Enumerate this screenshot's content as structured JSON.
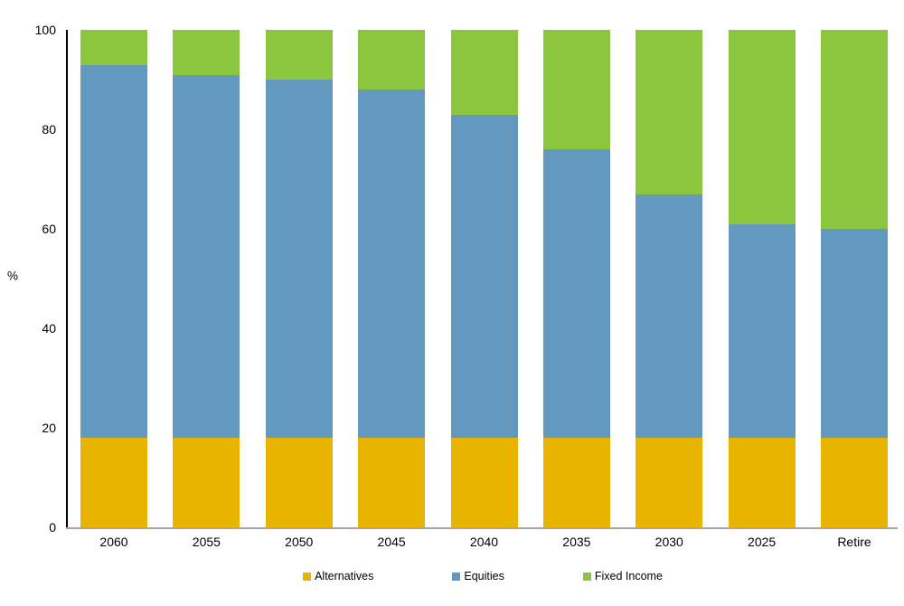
{
  "chart_data": {
    "type": "bar",
    "stacked": true,
    "title": "",
    "xlabel": "",
    "ylabel": "%",
    "ylim": [
      0,
      100
    ],
    "y_ticks": [
      0,
      20,
      40,
      60,
      80,
      100
    ],
    "grid": false,
    "legend_position": "bottom",
    "categories": [
      "2060",
      "2055",
      "2050",
      "2045",
      "2040",
      "2035",
      "2030",
      "2025",
      "Retire"
    ],
    "series": [
      {
        "name": "Alternatives",
        "color": "#E9B400",
        "values": [
          18,
          18,
          18,
          18,
          18,
          18,
          18,
          18,
          18
        ]
      },
      {
        "name": "Equities",
        "color": "#6399BE",
        "values": [
          75,
          73,
          72,
          70,
          65,
          58,
          49,
          43,
          42
        ]
      },
      {
        "name": "Fixed Income",
        "color": "#8CC63E",
        "values": [
          7,
          9,
          10,
          12,
          17,
          24,
          33,
          39,
          40
        ]
      }
    ],
    "axis_colors": {
      "y_axis": "#000000",
      "x_baseline": "#A6A6A6"
    }
  }
}
